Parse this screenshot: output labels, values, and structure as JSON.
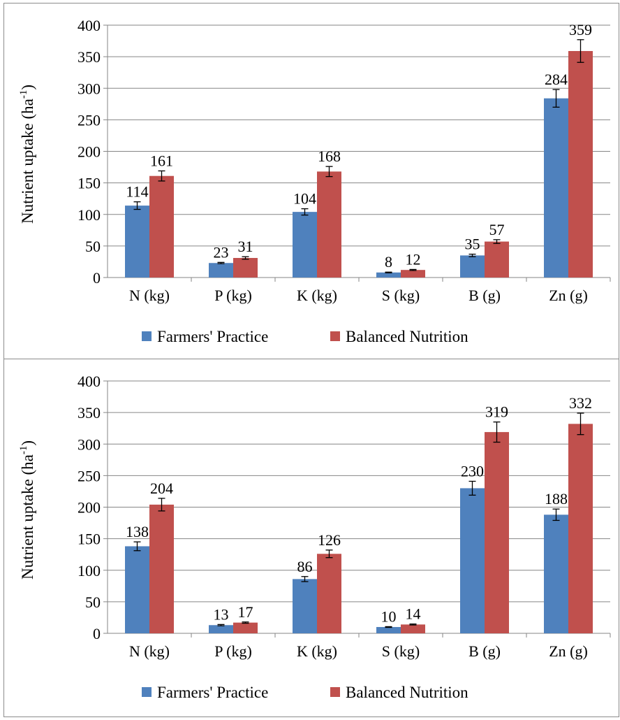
{
  "chart_data": [
    {
      "type": "bar",
      "ylabel": "Nutrient uptake (ha",
      "ylabel_sup": "-1",
      "ylabel_close": ")",
      "ylim": [
        0,
        400
      ],
      "yticks": [
        0,
        50,
        100,
        150,
        200,
        250,
        300,
        350,
        400
      ],
      "grid": true,
      "legend_position": "bottom",
      "categories": [
        "N (kg)",
        "P (kg)",
        "K (kg)",
        "S (kg)",
        "B (g)",
        "Zn (g)"
      ],
      "series": [
        {
          "name": "Farmers' Practice",
          "color": "#4f81bd",
          "values": [
            114,
            23,
            104,
            8,
            35,
            284
          ],
          "errors": [
            6,
            1,
            5,
            0.6,
            2,
            14
          ]
        },
        {
          "name": "Balanced Nutrition",
          "color": "#c0504d",
          "values": [
            161,
            31,
            168,
            12,
            57,
            359
          ],
          "errors": [
            8,
            2,
            8,
            0.8,
            3,
            18
          ]
        }
      ]
    },
    {
      "type": "bar",
      "ylabel": "Nutrient uptake (ha",
      "ylabel_sup": "-1",
      "ylabel_close": ")",
      "ylim": [
        0,
        400
      ],
      "yticks": [
        0,
        50,
        100,
        150,
        200,
        250,
        300,
        350,
        400
      ],
      "grid": true,
      "legend_position": "bottom",
      "categories": [
        "N (kg)",
        "P (kg)",
        "K (kg)",
        "S (kg)",
        "B (g)",
        "Zn (g)"
      ],
      "series": [
        {
          "name": "Farmers' Practice",
          "color": "#4f81bd",
          "values": [
            138,
            13,
            86,
            10,
            230,
            188
          ],
          "errors": [
            7,
            1,
            4,
            0.6,
            11,
            9
          ]
        },
        {
          "name": "Balanced Nutrition",
          "color": "#c0504d",
          "values": [
            204,
            17,
            126,
            14,
            319,
            332
          ],
          "errors": [
            10,
            1,
            6,
            0.8,
            16,
            17
          ]
        }
      ]
    }
  ]
}
